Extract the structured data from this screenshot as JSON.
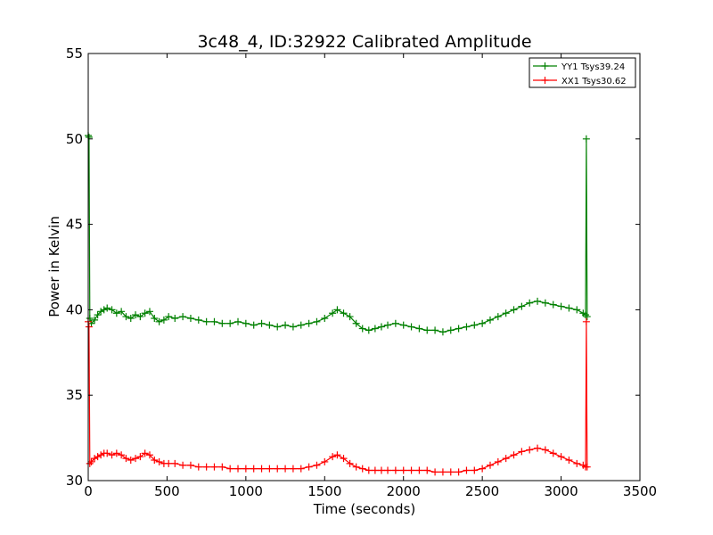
{
  "chart_data": {
    "type": "line",
    "title": "3c48_4, ID:32922 Calibrated Amplitude",
    "xlabel": "Time (seconds)",
    "ylabel": "Power in Kelvin",
    "xlim": [
      0,
      3500
    ],
    "ylim": [
      30,
      55
    ],
    "xticks": [
      0,
      500,
      1000,
      1500,
      2000,
      2500,
      3000,
      3500
    ],
    "yticks": [
      30,
      35,
      40,
      45,
      50,
      55
    ],
    "tick_labels_x": [
      "0",
      "500",
      "1000",
      "1500",
      "2000",
      "2500",
      "3000",
      "3500"
    ],
    "tick_labels_y": [
      "30",
      "35",
      "40",
      "45",
      "50",
      "55"
    ],
    "grid": false,
    "legend_position": "top-right",
    "marker": "+",
    "series": [
      {
        "name": "YY1 Tsys39.24",
        "color": "#008000",
        "x": [
          0,
          5,
          10,
          20,
          40,
          60,
          80,
          100,
          120,
          150,
          180,
          210,
          240,
          270,
          300,
          330,
          360,
          390,
          420,
          450,
          480,
          510,
          550,
          600,
          650,
          700,
          750,
          800,
          850,
          900,
          950,
          1000,
          1050,
          1100,
          1150,
          1200,
          1250,
          1300,
          1350,
          1400,
          1450,
          1500,
          1550,
          1580,
          1620,
          1660,
          1700,
          1740,
          1780,
          1820,
          1860,
          1900,
          1950,
          2000,
          2050,
          2100,
          2150,
          2200,
          2250,
          2300,
          2350,
          2400,
          2450,
          2500,
          2550,
          2600,
          2650,
          2700,
          2750,
          2800,
          2850,
          2900,
          2950,
          3000,
          3050,
          3100,
          3140,
          3155,
          3160,
          3165
        ],
        "y": [
          50.2,
          50.1,
          39.5,
          39.2,
          39.4,
          39.7,
          39.9,
          40.0,
          40.1,
          40.0,
          39.8,
          39.9,
          39.6,
          39.5,
          39.7,
          39.6,
          39.8,
          39.9,
          39.5,
          39.3,
          39.4,
          39.6,
          39.5,
          39.6,
          39.5,
          39.4,
          39.3,
          39.3,
          39.2,
          39.2,
          39.3,
          39.2,
          39.1,
          39.2,
          39.1,
          39.0,
          39.1,
          39.0,
          39.1,
          39.2,
          39.3,
          39.5,
          39.8,
          40.0,
          39.8,
          39.6,
          39.2,
          38.9,
          38.8,
          38.9,
          39.0,
          39.1,
          39.2,
          39.1,
          39.0,
          38.9,
          38.8,
          38.8,
          38.7,
          38.8,
          38.9,
          39.0,
          39.1,
          39.2,
          39.4,
          39.6,
          39.8,
          40.0,
          40.2,
          40.4,
          40.5,
          40.4,
          40.3,
          40.2,
          40.1,
          40.0,
          39.8,
          39.7,
          50.0,
          39.6
        ]
      },
      {
        "name": "XX1 Tsys30.62",
        "color": "#ff0000",
        "x": [
          0,
          5,
          10,
          20,
          40,
          60,
          80,
          100,
          120,
          150,
          180,
          210,
          240,
          270,
          300,
          330,
          360,
          390,
          420,
          450,
          480,
          510,
          550,
          600,
          650,
          700,
          750,
          800,
          850,
          900,
          950,
          1000,
          1050,
          1100,
          1150,
          1200,
          1250,
          1300,
          1350,
          1400,
          1450,
          1500,
          1550,
          1580,
          1620,
          1660,
          1700,
          1740,
          1780,
          1820,
          1860,
          1900,
          1950,
          2000,
          2050,
          2100,
          2150,
          2200,
          2250,
          2300,
          2350,
          2400,
          2450,
          2500,
          2550,
          2600,
          2650,
          2700,
          2750,
          2800,
          2850,
          2900,
          2950,
          3000,
          3050,
          3100,
          3140,
          3155,
          3160,
          3165
        ],
        "y": [
          39.3,
          39.0,
          31.0,
          31.1,
          31.3,
          31.4,
          31.5,
          31.6,
          31.6,
          31.5,
          31.6,
          31.5,
          31.3,
          31.2,
          31.3,
          31.4,
          31.6,
          31.5,
          31.2,
          31.1,
          31.0,
          31.0,
          31.0,
          30.9,
          30.9,
          30.8,
          30.8,
          30.8,
          30.8,
          30.7,
          30.7,
          30.7,
          30.7,
          30.7,
          30.7,
          30.7,
          30.7,
          30.7,
          30.7,
          30.8,
          30.9,
          31.1,
          31.4,
          31.5,
          31.3,
          31.0,
          30.8,
          30.7,
          30.6,
          30.6,
          30.6,
          30.6,
          30.6,
          30.6,
          30.6,
          30.6,
          30.6,
          30.5,
          30.5,
          30.5,
          30.5,
          30.6,
          30.6,
          30.7,
          30.9,
          31.1,
          31.3,
          31.5,
          31.7,
          31.8,
          31.9,
          31.8,
          31.6,
          31.4,
          31.2,
          31.0,
          30.9,
          30.8,
          39.3,
          30.8
        ]
      }
    ]
  }
}
